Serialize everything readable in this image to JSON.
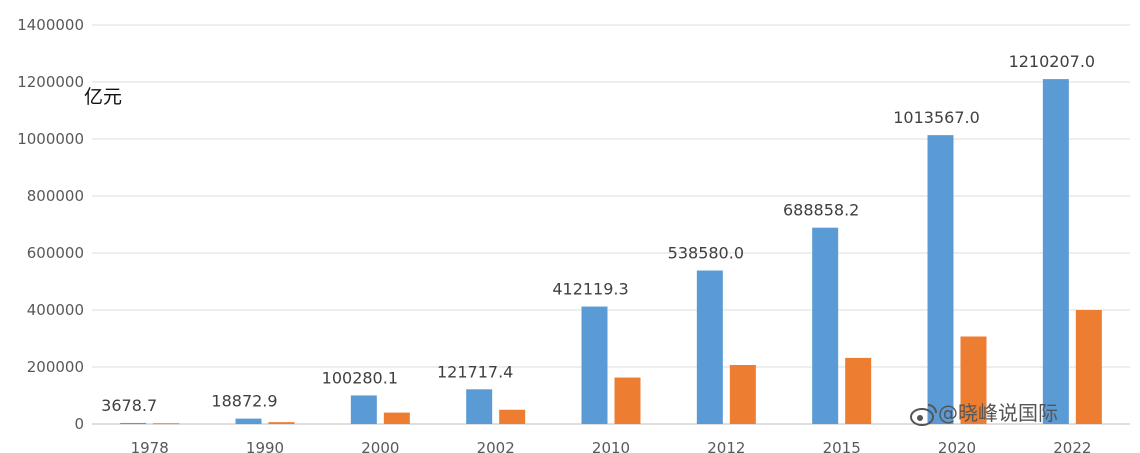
{
  "chart_data": {
    "type": "bar",
    "categories": [
      "1978",
      "1990",
      "2000",
      "2002",
      "2010",
      "2012",
      "2015",
      "2020",
      "2022"
    ],
    "series": [
      {
        "values": [
          3678.7,
          18872.9,
          100280.1,
          121717.4,
          412119.3,
          538580.0,
          688858.2,
          1013567.0,
          1210207.0
        ],
        "data_labels": [
          "3678.7",
          "18872.9",
          "100280.1",
          "121717.4",
          "412119.3",
          "538580.0",
          "688858.2",
          "1013567.0",
          "1210207.0"
        ],
        "color": "#5b9bd5"
      },
      {
        "values": [
          2800,
          6500,
          40000,
          50000,
          163000,
          207000,
          232000,
          307000,
          400000
        ],
        "color": "#ed7d31"
      }
    ],
    "yticks": [
      "0",
      "200000",
      "400000",
      "600000",
      "800000",
      "1000000",
      "1200000",
      "1400000"
    ],
    "ylim": [
      0,
      1400000
    ],
    "ylabel": "亿元",
    "title": "",
    "xlabel": "",
    "grid": true
  },
  "watermark": {
    "icon": "weibo-logo-icon",
    "text": "@晓峰说国际"
  }
}
